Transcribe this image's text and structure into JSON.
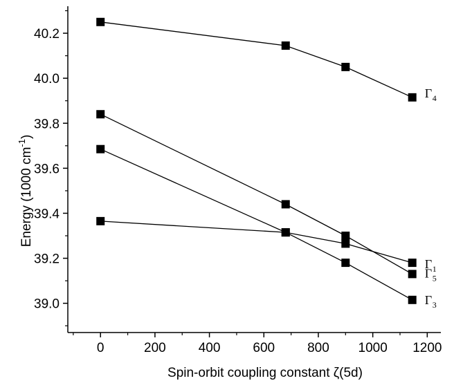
{
  "chart_data": {
    "type": "line",
    "xlabel": "Spin-orbit coupling constant ζ(5d)",
    "ylabel_main": "Energy (1000 cm",
    "ylabel_sup": "-1",
    "ylabel_close": ")",
    "xlim": [
      -120,
      1250
    ],
    "ylim": [
      38.87,
      40.32
    ],
    "xticks": [
      0,
      200,
      400,
      600,
      800,
      1000,
      1200
    ],
    "yticks": [
      39.0,
      39.2,
      39.4,
      39.6,
      39.8,
      40.0,
      40.2
    ],
    "grid": false,
    "marker": "square",
    "series": [
      {
        "name": "Γ",
        "sub": "4",
        "x": [
          0,
          680,
          900,
          1145
        ],
        "y": [
          40.25,
          40.145,
          40.05,
          39.915
        ]
      },
      {
        "name": "Γ",
        "sub": "1",
        "x": [
          0,
          680,
          900,
          1145
        ],
        "y": [
          39.365,
          39.315,
          39.265,
          39.18
        ]
      },
      {
        "name": "Γ",
        "sub": "5",
        "x": [
          0,
          680,
          900,
          1145
        ],
        "y": [
          39.84,
          39.44,
          39.3,
          39.13
        ]
      },
      {
        "name": "Γ",
        "sub": "3",
        "x": [
          0,
          680,
          900,
          1145
        ],
        "y": [
          39.685,
          39.315,
          39.18,
          39.015
        ]
      }
    ]
  }
}
